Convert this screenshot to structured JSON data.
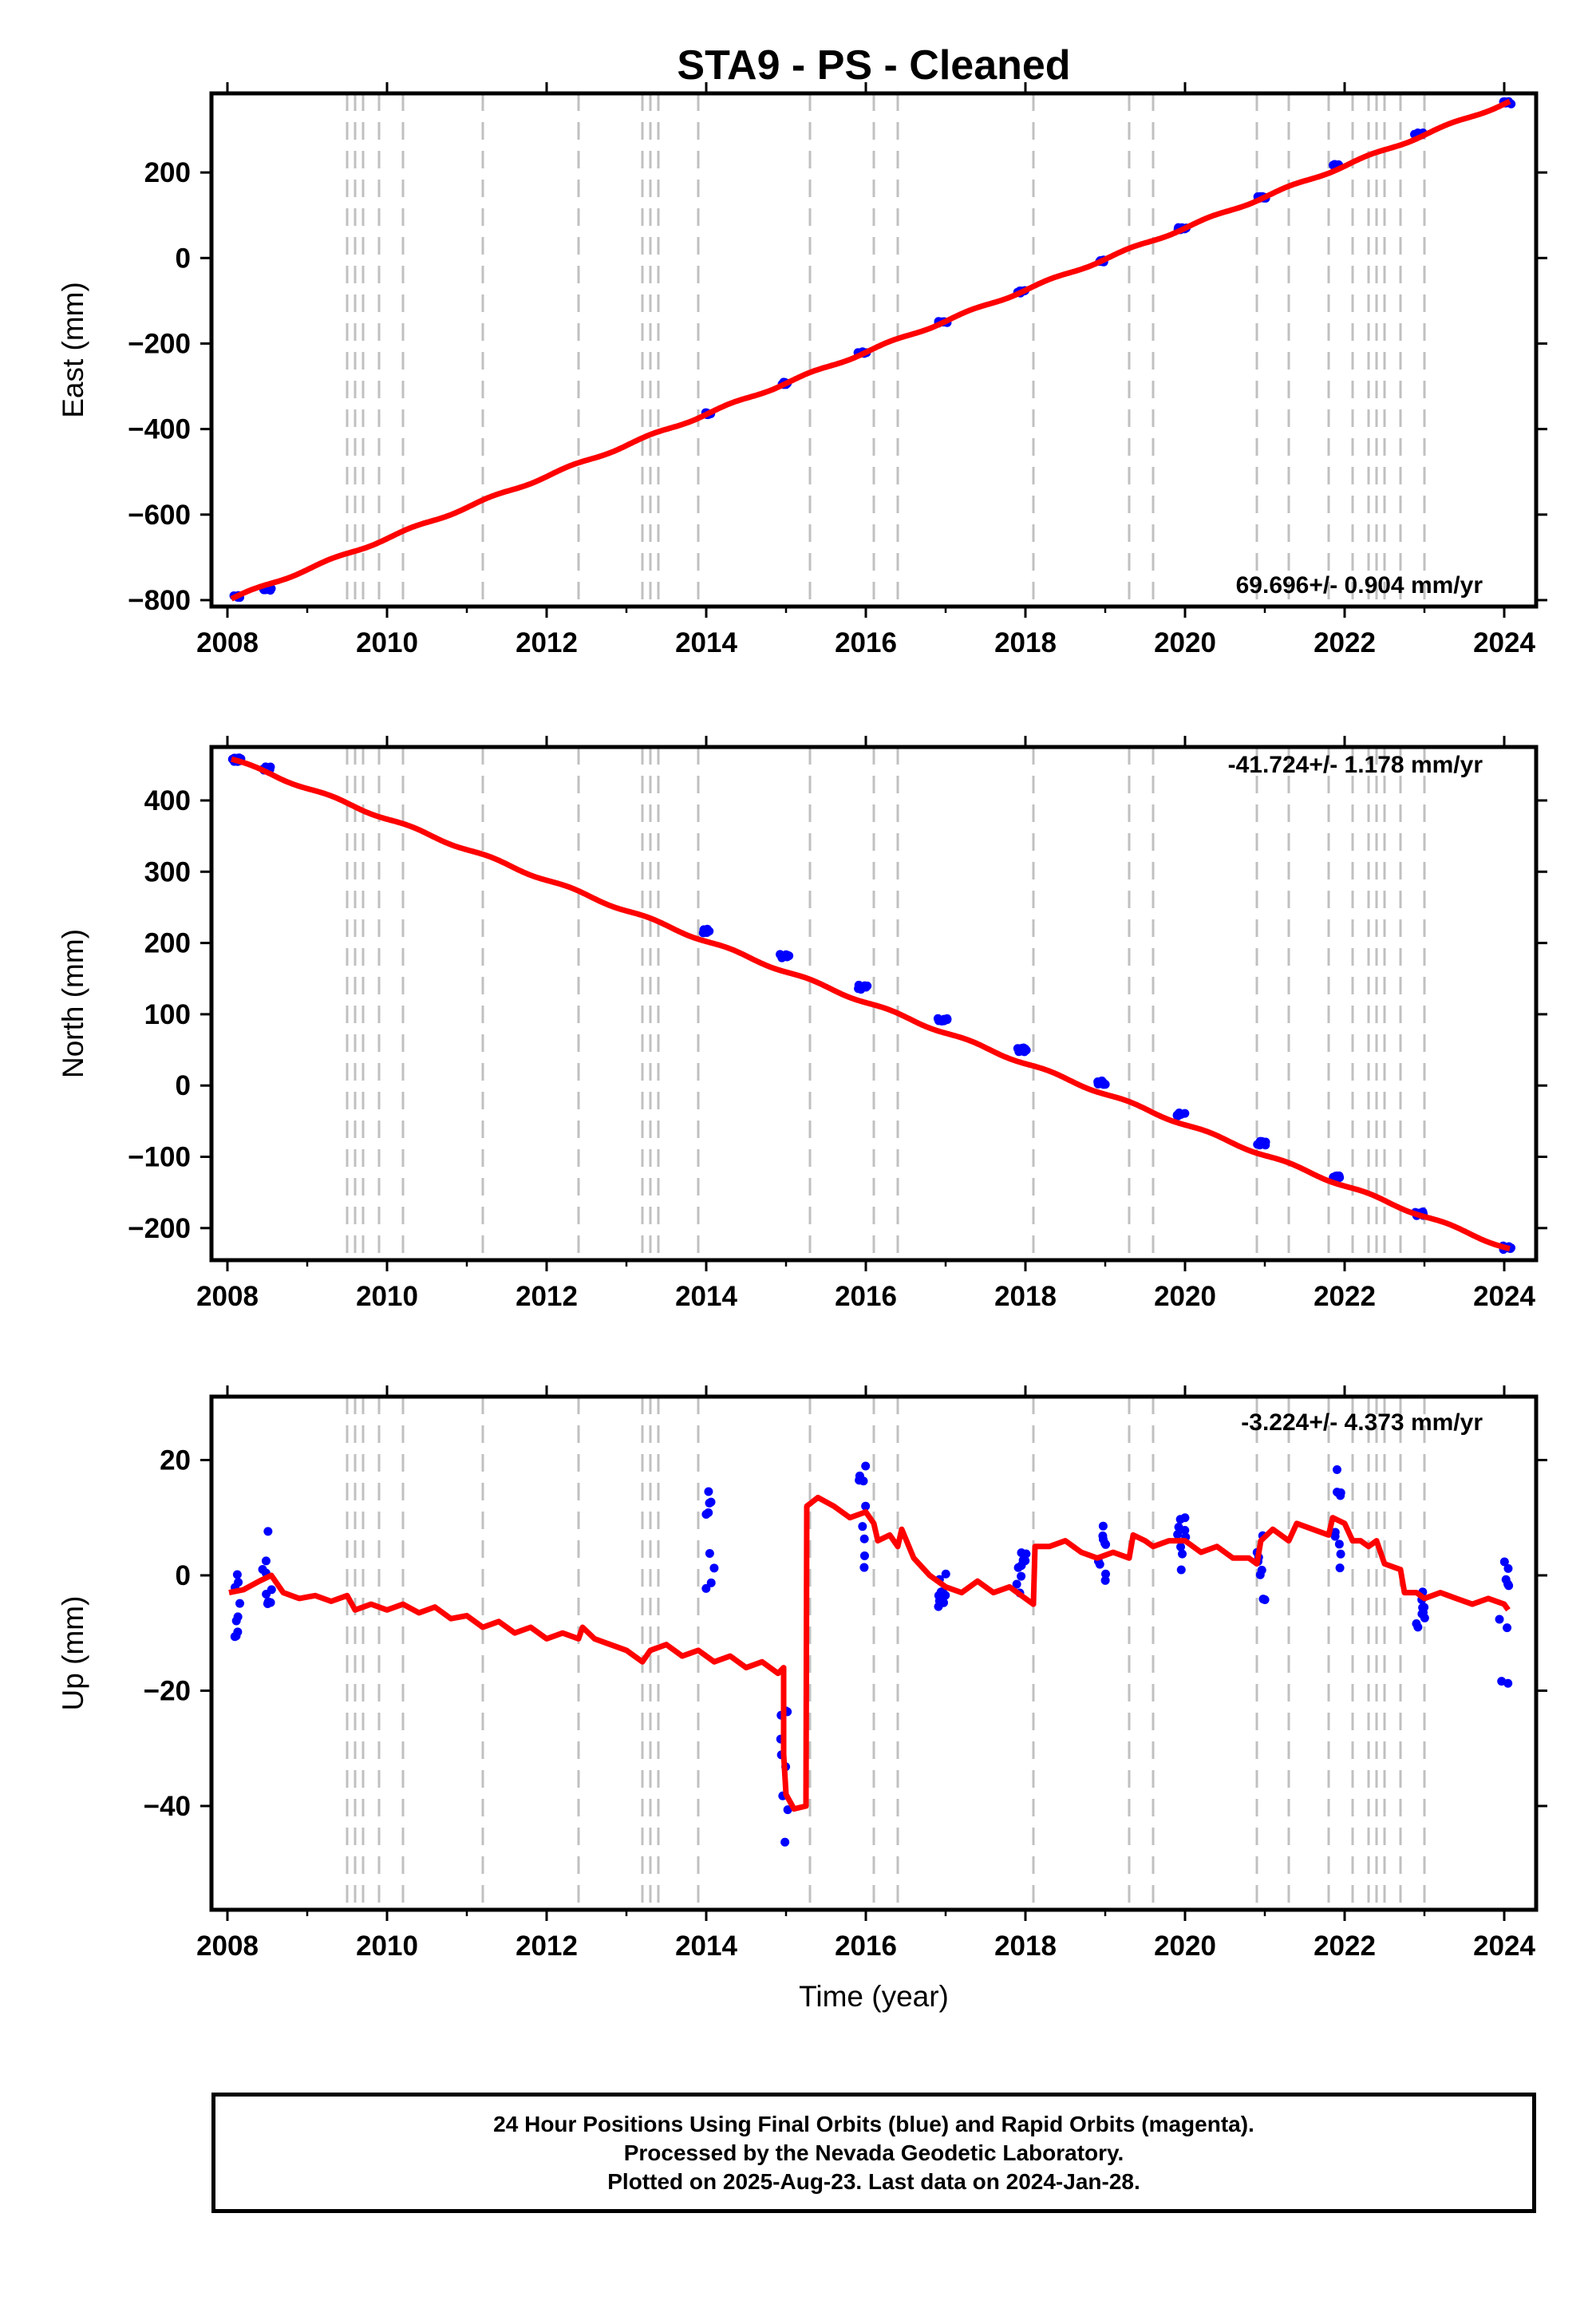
{
  "title": "STA9  - PS - Cleaned",
  "x_label": "Time (year)",
  "footer": {
    "line1": "24 Hour Positions Using Final Orbits (blue) and Rapid Orbits (magenta).",
    "line2": "Processed by the Nevada Geodetic Laboratory.",
    "line3": "Plotted on 2025-Aug-23. Last data on 2024-Jan-28."
  },
  "colors": {
    "observations": "#0000ff",
    "model": "#ff0000",
    "steps": "#c0c0c0",
    "frame": "#000000"
  },
  "chart_data": [
    {
      "type": "scatter",
      "panel": "east",
      "ylabel": "East (mm)",
      "rate_label": "69.696+/- 0.904 mm/yr",
      "xlim": [
        2007.8,
        2024.4
      ],
      "ylim": [
        -815,
        385
      ],
      "xticks": [
        2008,
        2010,
        2012,
        2014,
        2016,
        2018,
        2020,
        2022,
        2024
      ],
      "yticks": [
        -800,
        -600,
        -400,
        -200,
        0,
        200
      ],
      "step_epochs": [
        2009.5,
        2009.6,
        2009.7,
        2009.9,
        2010.2,
        2011.2,
        2012.4,
        2013.2,
        2013.3,
        2013.4,
        2013.9,
        2015.3,
        2016.1,
        2016.4,
        2018.1,
        2019.3,
        2019.6,
        2020.9,
        2021.3,
        2021.8,
        2022.1,
        2022.3,
        2022.4,
        2022.5,
        2022.7,
        2023.0
      ],
      "trend": {
        "t0": 2008.05,
        "v0": -797,
        "rate": 72.6,
        "wiggle": 3
      },
      "clusters": [
        {
          "t": 2008.12,
          "v": -792
        },
        {
          "t": 2008.5,
          "v": -775
        },
        {
          "t": 2014.0,
          "v": -364
        },
        {
          "t": 2014.98,
          "v": -293
        },
        {
          "t": 2015.96,
          "v": -222
        },
        {
          "t": 2016.96,
          "v": -151
        },
        {
          "t": 2017.96,
          "v": -79
        },
        {
          "t": 2018.96,
          "v": -7
        },
        {
          "t": 2019.96,
          "v": 69
        },
        {
          "t": 2020.96,
          "v": 141
        },
        {
          "t": 2021.9,
          "v": 217
        },
        {
          "t": 2022.93,
          "v": 290
        },
        {
          "t": 2024.03,
          "v": 363
        }
      ]
    },
    {
      "type": "scatter",
      "panel": "north",
      "ylabel": "North (mm)",
      "rate_label": "-41.724+/- 1.178 mm/yr",
      "xlim": [
        2007.8,
        2024.4
      ],
      "ylim": [
        -245,
        475
      ],
      "xticks": [
        2008,
        2010,
        2012,
        2014,
        2016,
        2018,
        2020,
        2022,
        2024
      ],
      "yticks": [
        -200,
        -100,
        0,
        100,
        200,
        300,
        400
      ],
      "step_epochs": [
        2009.5,
        2009.6,
        2009.7,
        2009.9,
        2010.2,
        2011.2,
        2012.4,
        2013.2,
        2013.3,
        2013.4,
        2013.9,
        2015.3,
        2016.1,
        2016.4,
        2018.1,
        2019.3,
        2019.6,
        2020.9,
        2021.3,
        2021.8,
        2022.1,
        2022.3,
        2022.4,
        2022.5,
        2022.7,
        2023.0
      ],
      "trend": {
        "t0": 2008.05,
        "v0": 458,
        "rate": -42.9,
        "wiggle": 2
      },
      "clusters": [
        {
          "t": 2008.12,
          "v": 457
        },
        {
          "t": 2008.5,
          "v": 445
        },
        {
          "t": 2014.0,
          "v": 217
        },
        {
          "t": 2014.98,
          "v": 181
        },
        {
          "t": 2015.96,
          "v": 138
        },
        {
          "t": 2016.96,
          "v": 93
        },
        {
          "t": 2017.96,
          "v": 50
        },
        {
          "t": 2018.96,
          "v": 4
        },
        {
          "t": 2019.96,
          "v": -40
        },
        {
          "t": 2020.96,
          "v": -81
        },
        {
          "t": 2021.9,
          "v": -129
        },
        {
          "t": 2022.93,
          "v": -180
        },
        {
          "t": 2024.03,
          "v": -227
        }
      ]
    },
    {
      "type": "scatter",
      "panel": "up",
      "ylabel": "Up (mm)",
      "rate_label": "-3.224+/- 4.373 mm/yr",
      "xlim": [
        2007.8,
        2024.4
      ],
      "ylim": [
        -58,
        31
      ],
      "xticks": [
        2008,
        2010,
        2012,
        2014,
        2016,
        2018,
        2020,
        2022,
        2024
      ],
      "yticks": [
        -40,
        -20,
        0,
        20
      ],
      "step_epochs": [
        2009.5,
        2009.6,
        2009.7,
        2009.9,
        2010.2,
        2011.2,
        2012.4,
        2013.2,
        2013.3,
        2013.4,
        2013.9,
        2015.3,
        2016.1,
        2016.4,
        2018.1,
        2019.3,
        2019.6,
        2020.9,
        2021.3,
        2021.8,
        2022.1,
        2022.3,
        2022.4,
        2022.5,
        2022.7,
        2023.0
      ],
      "model_line": [
        [
          2008.02,
          -3
        ],
        [
          2008.2,
          -2.5
        ],
        [
          2008.4,
          -1
        ],
        [
          2008.55,
          0
        ],
        [
          2008.7,
          -3
        ],
        [
          2008.9,
          -4
        ],
        [
          2009.1,
          -3.5
        ],
        [
          2009.3,
          -4.5
        ],
        [
          2009.5,
          -3.5
        ],
        [
          2009.6,
          -6
        ],
        [
          2009.8,
          -5
        ],
        [
          2010.0,
          -6
        ],
        [
          2010.2,
          -5
        ],
        [
          2010.4,
          -6.5
        ],
        [
          2010.6,
          -5.5
        ],
        [
          2010.8,
          -7.5
        ],
        [
          2011.0,
          -7
        ],
        [
          2011.2,
          -9
        ],
        [
          2011.4,
          -8
        ],
        [
          2011.6,
          -10
        ],
        [
          2011.8,
          -9
        ],
        [
          2012.0,
          -11
        ],
        [
          2012.2,
          -10
        ],
        [
          2012.4,
          -11
        ],
        [
          2012.45,
          -9
        ],
        [
          2012.6,
          -11
        ],
        [
          2012.8,
          -12
        ],
        [
          2013.0,
          -13
        ],
        [
          2013.2,
          -15
        ],
        [
          2013.3,
          -13
        ],
        [
          2013.5,
          -12
        ],
        [
          2013.7,
          -14
        ],
        [
          2013.9,
          -13
        ],
        [
          2014.1,
          -15
        ],
        [
          2014.3,
          -14
        ],
        [
          2014.5,
          -16
        ],
        [
          2014.7,
          -15
        ],
        [
          2014.9,
          -17
        ],
        [
          2014.97,
          -16
        ],
        [
          2014.97,
          -31
        ],
        [
          2015.0,
          -38
        ],
        [
          2015.1,
          -40.5
        ],
        [
          2015.25,
          -40
        ],
        [
          2015.26,
          12
        ],
        [
          2015.4,
          13.5
        ],
        [
          2015.6,
          12
        ],
        [
          2015.8,
          10
        ],
        [
          2016.0,
          11
        ],
        [
          2016.1,
          9
        ],
        [
          2016.15,
          6
        ],
        [
          2016.3,
          7
        ],
        [
          2016.4,
          5
        ],
        [
          2016.45,
          8
        ],
        [
          2016.6,
          3
        ],
        [
          2016.8,
          0
        ],
        [
          2017.0,
          -2
        ],
        [
          2017.2,
          -3
        ],
        [
          2017.4,
          -1
        ],
        [
          2017.6,
          -3
        ],
        [
          2017.8,
          -2
        ],
        [
          2018.0,
          -4
        ],
        [
          2018.1,
          -5
        ],
        [
          2018.12,
          5
        ],
        [
          2018.3,
          5
        ],
        [
          2018.5,
          6
        ],
        [
          2018.7,
          4
        ],
        [
          2018.9,
          3
        ],
        [
          2019.1,
          4
        ],
        [
          2019.3,
          3
        ],
        [
          2019.35,
          7
        ],
        [
          2019.5,
          6
        ],
        [
          2019.6,
          5
        ],
        [
          2019.8,
          6
        ],
        [
          2020.0,
          6
        ],
        [
          2020.2,
          4
        ],
        [
          2020.4,
          5
        ],
        [
          2020.6,
          3
        ],
        [
          2020.8,
          3
        ],
        [
          2020.9,
          2
        ],
        [
          2020.95,
          6
        ],
        [
          2021.1,
          8
        ],
        [
          2021.3,
          6
        ],
        [
          2021.4,
          9
        ],
        [
          2021.6,
          8
        ],
        [
          2021.8,
          7
        ],
        [
          2021.85,
          10
        ],
        [
          2022.0,
          9
        ],
        [
          2022.1,
          6
        ],
        [
          2022.2,
          6
        ],
        [
          2022.3,
          5
        ],
        [
          2022.4,
          6
        ],
        [
          2022.5,
          2
        ],
        [
          2022.7,
          1
        ],
        [
          2022.75,
          -3
        ],
        [
          2022.9,
          -3
        ],
        [
          2023.0,
          -4
        ],
        [
          2023.2,
          -3
        ],
        [
          2023.4,
          -4
        ],
        [
          2023.6,
          -5
        ],
        [
          2023.8,
          -4
        ],
        [
          2024.0,
          -5
        ],
        [
          2024.05,
          -6
        ]
      ],
      "clusters": [
        {
          "t": 2008.1,
          "v": -5,
          "s": 6
        },
        {
          "t": 2008.5,
          "v": 3,
          "s": 8
        },
        {
          "t": 2014.05,
          "v": 5,
          "s": 10
        },
        {
          "t": 2014.98,
          "v": -33,
          "s": 14
        },
        {
          "t": 2015.95,
          "v": 10,
          "s": 9
        },
        {
          "t": 2016.95,
          "v": -2,
          "s": 5
        },
        {
          "t": 2017.95,
          "v": 0,
          "s": 4
        },
        {
          "t": 2018.95,
          "v": 4,
          "s": 5
        },
        {
          "t": 2019.95,
          "v": 5,
          "s": 6
        },
        {
          "t": 2020.95,
          "v": 2,
          "s": 7
        },
        {
          "t": 2021.9,
          "v": 9,
          "s": 10
        },
        {
          "t": 2022.95,
          "v": -4,
          "s": 6
        },
        {
          "t": 2024.0,
          "v": -7,
          "s": 12
        }
      ]
    }
  ]
}
